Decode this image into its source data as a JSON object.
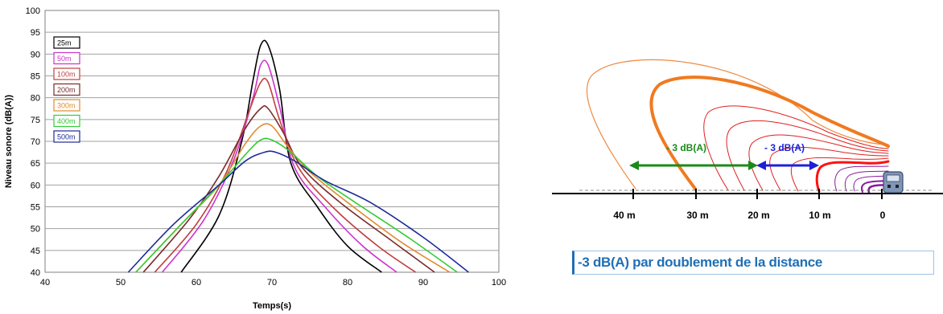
{
  "chart_data": {
    "type": "line",
    "title": "",
    "xlabel": "Temps(s)",
    "ylabel": "Niveau sonore (dB(A))",
    "xlim": [
      40,
      100
    ],
    "ylim": [
      40,
      100
    ],
    "xticks": [
      "40",
      "50",
      "60",
      "70",
      "80",
      "90",
      "100"
    ],
    "yticks": [
      "40",
      "45",
      "50",
      "55",
      "60",
      "65",
      "70",
      "75",
      "80",
      "85",
      "90",
      "95",
      "100"
    ],
    "grid": "horizontal",
    "legend_position": "top-left",
    "series": [
      {
        "name": "25m",
        "color": "#000000",
        "x": [
          58,
          63,
          66,
          67.5,
          68.5,
          69.5,
          71,
          72.5,
          76,
          80,
          84.5
        ],
        "y": [
          40,
          53,
          70,
          84,
          92,
          92,
          82,
          65,
          55,
          46,
          40
        ]
      },
      {
        "name": "50m",
        "color": "#cc33cc",
        "x": [
          55.5,
          61,
          65,
          67.5,
          68.5,
          69.5,
          71,
          73,
          77,
          82,
          86.5
        ],
        "y": [
          40,
          52,
          66,
          80,
          87.5,
          87.5,
          78,
          64,
          55,
          46,
          40
        ]
      },
      {
        "name": "100m",
        "color": "#c04040",
        "x": [
          54.5,
          60,
          64,
          67,
          68.5,
          69.5,
          71,
          73.5,
          78,
          84,
          89
        ],
        "y": [
          40,
          51,
          63,
          77,
          83.5,
          83.5,
          75,
          64,
          55,
          46,
          40
        ]
      },
      {
        "name": "200m",
        "color": "#7a2a2a",
        "x": [
          53,
          59,
          63,
          66.5,
          68.5,
          69.5,
          71.5,
          74,
          79,
          86,
          91.5
        ],
        "y": [
          40,
          52,
          62,
          73,
          77.5,
          77.5,
          72,
          64,
          56,
          47,
          40
        ]
      },
      {
        "name": "300m",
        "color": "#e08a30",
        "x": [
          52,
          58,
          63,
          66.5,
          68.5,
          70,
          72,
          75,
          80,
          87,
          93.5
        ],
        "y": [
          40,
          51,
          60,
          69.5,
          73.5,
          73.5,
          69,
          63,
          56,
          47,
          40
        ]
      },
      {
        "name": "400m",
        "color": "#33cc33",
        "x": [
          52,
          58,
          63,
          66.5,
          68.5,
          70,
          72.5,
          76,
          81,
          88,
          94.5
        ],
        "y": [
          40,
          51,
          60,
          67,
          70.3,
          70.3,
          67.5,
          62,
          56,
          48,
          40
        ]
      },
      {
        "name": "500m",
        "color": "#1e2a9a",
        "x": [
          51,
          57,
          63,
          66.5,
          69,
          70.5,
          73,
          77,
          83,
          90,
          96
        ],
        "y": [
          40,
          51,
          60,
          65.5,
          67.5,
          67.5,
          65.5,
          61,
          56,
          48,
          40
        ]
      }
    ]
  },
  "diagram": {
    "ticks": [
      "40 m",
      "30 m",
      "20 m",
      "10 m",
      "0"
    ],
    "arrows": [
      {
        "label": "- 3 dB(A)",
        "color": "#1a8a1a"
      },
      {
        "label": "- 3 dB(A)",
        "color": "#1f1fd6"
      }
    ],
    "caption": "-3 dB(A) par doublement de la distance"
  }
}
